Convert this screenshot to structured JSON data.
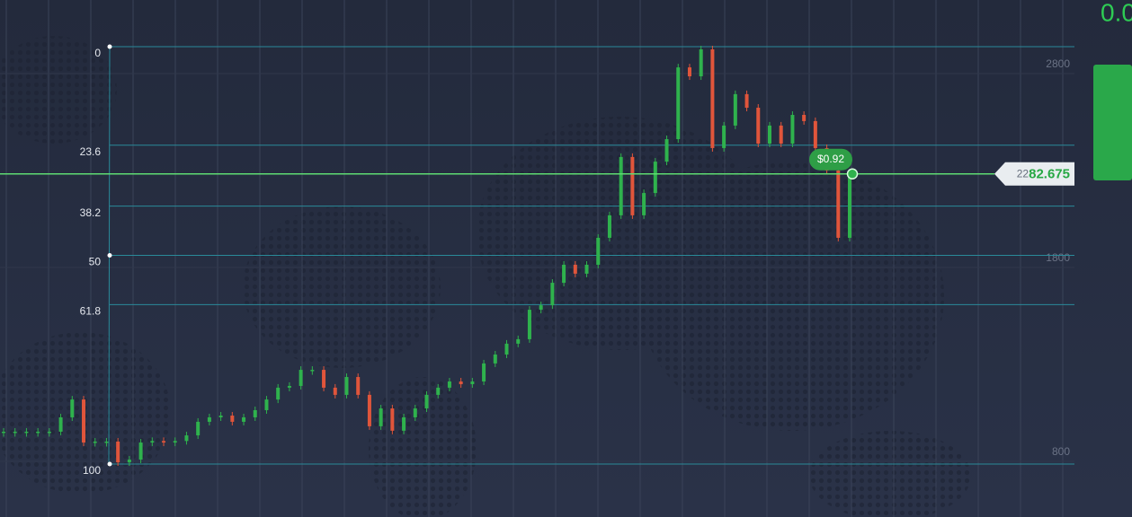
{
  "top_right_value": "0.0",
  "chart": {
    "yticks": [
      2800,
      1800,
      800
    ],
    "fib": {
      "high": 2939,
      "low": 786,
      "levels": [
        0,
        23.6,
        38.2,
        50,
        61.8,
        100
      ]
    },
    "first_open": 953,
    "closes": [
      953,
      953,
      953,
      953,
      953,
      1027,
      1119,
      897,
      902,
      902,
      795,
      809,
      897,
      905,
      897,
      905,
      934,
      1004,
      1027,
      1036,
      1004,
      1027,
      1064,
      1119,
      1180,
      1189,
      1272,
      1272,
      1180,
      1143,
      1235,
      1143,
      981,
      1073,
      958,
      1027,
      1073,
      1143,
      1180,
      1212,
      1198,
      1212,
      1305,
      1351,
      1407,
      1430,
      1582,
      1605,
      1721,
      1814,
      1768,
      1814,
      1953,
      2069,
      2370,
      2069,
      2184,
      2346,
      2462,
      2832,
      2786,
      2925,
      2416,
      2532,
      2694,
      2624,
      2439,
      2532,
      2439,
      2587,
      2555,
      2416,
      2300,
      1953,
      2282.675
    ],
    "current_price": 2282.675,
    "price_tag": {
      "prefix": "22",
      "main": "82.675"
    },
    "profit_bubble": "$0.92"
  }
}
